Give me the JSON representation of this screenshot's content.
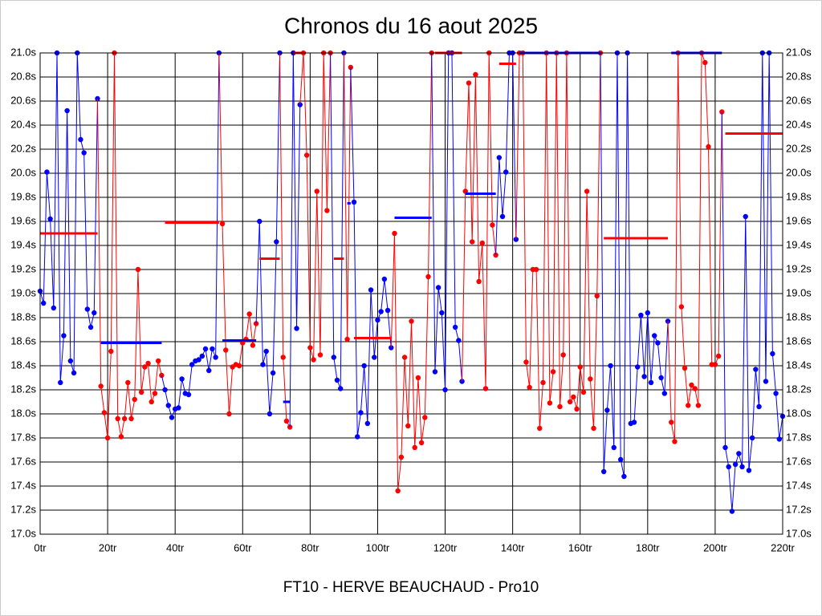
{
  "chart_data": {
    "type": "line",
    "title": "Chronos du 16 aout 2025",
    "x_label": "FT10 - HERVE BEAUCHAUD - Pro10",
    "xlim": [
      0,
      220
    ],
    "xticks": [
      {
        "value": 0,
        "label": "0tr"
      },
      {
        "value": 20,
        "label": "20tr"
      },
      {
        "value": 40,
        "label": "40tr"
      },
      {
        "value": 60,
        "label": "60tr"
      },
      {
        "value": 80,
        "label": "80tr"
      },
      {
        "value": 100,
        "label": "100tr"
      },
      {
        "value": 120,
        "label": "120tr"
      },
      {
        "value": 140,
        "label": "140tr"
      },
      {
        "value": 160,
        "label": "160tr"
      },
      {
        "value": 180,
        "label": "180tr"
      },
      {
        "value": 200,
        "label": "200tr"
      },
      {
        "value": 220,
        "label": "220tr"
      }
    ],
    "ylim": [
      17.0,
      21.0
    ],
    "yticks": [
      {
        "value": 17.0,
        "label": "17.0s"
      },
      {
        "value": 17.2,
        "label": "17.2s"
      },
      {
        "value": 17.4,
        "label": "17.4s"
      },
      {
        "value": 17.6,
        "label": "17.6s"
      },
      {
        "value": 17.8,
        "label": "17.8s"
      },
      {
        "value": 18.0,
        "label": "18.0s"
      },
      {
        "value": 18.2,
        "label": "18.2s"
      },
      {
        "value": 18.4,
        "label": "18.4s"
      },
      {
        "value": 18.6,
        "label": "18.6s"
      },
      {
        "value": 18.8,
        "label": "18.8s"
      },
      {
        "value": 19.0,
        "label": "19.0s"
      },
      {
        "value": 19.2,
        "label": "19.2s"
      },
      {
        "value": 19.4,
        "label": "19.4s"
      },
      {
        "value": 19.6,
        "label": "19.6s"
      },
      {
        "value": 19.8,
        "label": "19.8s"
      },
      {
        "value": 20.0,
        "label": "20.0s"
      },
      {
        "value": 20.2,
        "label": "20.2s"
      },
      {
        "value": 20.4,
        "label": "20.4s"
      },
      {
        "value": 20.6,
        "label": "20.6s"
      },
      {
        "value": 20.8,
        "label": "20.8s"
      },
      {
        "value": 21.0,
        "label": "21.0s"
      }
    ],
    "grid": true,
    "series": [
      {
        "color": "#0000ff",
        "start": 0,
        "values": [
          19.02,
          18.92,
          20.01,
          19.62,
          18.88,
          21.0,
          18.26,
          18.65,
          20.52,
          18.44,
          18.34,
          21.0,
          20.28,
          20.17,
          18.87,
          18.72,
          18.84,
          20.62
        ]
      },
      {
        "color": "#ff0000",
        "start": 18,
        "values": [
          18.23,
          18.01,
          17.8,
          18.52,
          21.0,
          17.96,
          17.81,
          17.96,
          18.26,
          17.96,
          18.12,
          19.2,
          18.18,
          18.39,
          18.42,
          18.1,
          18.17,
          18.44,
          18.32
        ]
      },
      {
        "color": "#0000ff",
        "start": 37,
        "values": [
          18.2,
          18.07,
          17.97,
          18.04,
          18.05,
          18.29,
          18.17,
          18.16,
          18.41,
          18.44,
          18.45,
          18.48,
          18.54,
          18.36,
          18.54,
          18.47,
          21.0
        ]
      },
      {
        "color": "#ff0000",
        "start": 54,
        "values": [
          19.58,
          18.53,
          18.0,
          18.39,
          18.41,
          18.4,
          18.59,
          18.62,
          18.83,
          18.57,
          18.75
        ]
      },
      {
        "color": "#0000ff",
        "start": 65,
        "values": [
          19.6,
          18.41,
          18.52,
          18.0,
          18.34,
          19.43,
          21.0
        ]
      },
      {
        "color": "#ff0000",
        "start": 72,
        "values": [
          18.47,
          17.94,
          17.89
        ]
      },
      {
        "color": "#0000ff",
        "start": 75,
        "values": [
          21.0,
          18.71,
          20.57
        ]
      },
      {
        "color": "#ff0000",
        "start": 78,
        "values": [
          21.0,
          20.15,
          18.55,
          18.45,
          19.85,
          18.49,
          21.0,
          19.69,
          21.0
        ]
      },
      {
        "color": "#0000ff",
        "start": 87,
        "values": [
          18.47,
          18.28,
          18.21,
          21.0
        ]
      },
      {
        "color": "#ff0000",
        "start": 91,
        "values": [
          18.62,
          20.88
        ]
      },
      {
        "color": "#0000ff",
        "start": 93,
        "values": [
          19.76,
          17.81,
          18.01,
          18.4,
          17.92,
          19.03,
          18.47,
          18.78,
          18.85,
          19.12,
          18.86,
          18.55
        ]
      },
      {
        "color": "#ff0000",
        "start": 105,
        "values": [
          19.5,
          17.36,
          17.64,
          18.47,
          17.9,
          18.77,
          17.72,
          18.3,
          17.76,
          17.97,
          19.14,
          21.0
        ]
      },
      {
        "color": "#0000ff",
        "start": 117,
        "values": [
          18.35,
          19.05,
          18.84,
          18.2,
          21.0,
          21.0,
          18.72,
          18.61,
          18.27
        ]
      },
      {
        "color": "#ff0000",
        "start": 126,
        "values": [
          19.85,
          20.75,
          19.43,
          20.82,
          19.1,
          19.42,
          18.21,
          21.0,
          19.57,
          19.32
        ]
      },
      {
        "color": "#0000ff",
        "start": 136,
        "values": [
          20.13,
          19.64,
          20.01,
          21.0,
          21.0,
          19.45
        ]
      },
      {
        "color": "#ff0000",
        "start": 142,
        "values": [
          21.0,
          21.0,
          18.43,
          18.22,
          19.2,
          19.2,
          17.88,
          18.26,
          21.0,
          18.09,
          18.35,
          21.0,
          18.06,
          18.49,
          21.0,
          18.1,
          18.14,
          18.04,
          18.39,
          18.18,
          19.85,
          18.29,
          17.88,
          18.98,
          21.0
        ]
      },
      {
        "color": "#0000ff",
        "start": 167,
        "values": [
          17.52,
          18.03,
          18.4,
          17.72,
          21.0,
          17.62,
          17.48,
          21.0,
          17.92,
          17.93,
          18.39,
          18.82,
          18.31,
          18.84,
          18.26,
          18.65,
          18.59,
          18.3,
          18.17,
          18.77
        ]
      },
      {
        "color": "#ff0000",
        "start": 187,
        "values": [
          17.93,
          17.77,
          21.0,
          18.89,
          18.38,
          18.07,
          18.24,
          18.21,
          18.07,
          21.0,
          20.92,
          20.22,
          18.41,
          18.41,
          18.48,
          20.51
        ]
      },
      {
        "color": "#0000ff",
        "start": 203,
        "values": [
          17.72,
          17.56,
          17.19,
          17.58,
          17.67,
          17.56,
          19.64,
          17.53,
          17.8,
          18.37,
          18.06,
          21.0,
          18.27,
          21.0,
          18.5,
          18.17,
          17.79,
          17.98
        ]
      }
    ],
    "means": [
      {
        "color": "#ff0000",
        "x": [
          0,
          17
        ],
        "value": 19.5
      },
      {
        "color": "#0000ff",
        "x": [
          18,
          36
        ],
        "value": 18.59
      },
      {
        "color": "#ff0000",
        "x": [
          37,
          53
        ],
        "value": 19.59
      },
      {
        "color": "#0000ff",
        "x": [
          54,
          64
        ],
        "value": 18.61
      },
      {
        "color": "#ff0000",
        "x": [
          65,
          71
        ],
        "value": 19.29
      },
      {
        "color": "#0000ff",
        "x": [
          72,
          74
        ],
        "value": 18.1
      },
      {
        "color": "#ff0000",
        "x": [
          75,
          78
        ],
        "value": 21.0
      },
      {
        "color": "#ff0000",
        "x": [
          87,
          90
        ],
        "value": 19.29
      },
      {
        "color": "#0000ff",
        "x": [
          91,
          92
        ],
        "value": 19.75
      },
      {
        "color": "#ff0000",
        "x": [
          93,
          104
        ],
        "value": 18.63
      },
      {
        "color": "#0000ff",
        "x": [
          105,
          116
        ],
        "value": 19.63
      },
      {
        "color": "#ff0000",
        "x": [
          117,
          125
        ],
        "value": 21.0
      },
      {
        "color": "#0000ff",
        "x": [
          126,
          135
        ],
        "value": 19.83
      },
      {
        "color": "#ff0000",
        "x": [
          136,
          141
        ],
        "value": 20.91
      },
      {
        "color": "#0000ff",
        "x": [
          142,
          166
        ],
        "value": 21.0
      },
      {
        "color": "#ff0000",
        "x": [
          167,
          186
        ],
        "value": 19.46
      },
      {
        "color": "#0000ff",
        "x": [
          187,
          202
        ],
        "value": 21.0
      },
      {
        "color": "#ff0000",
        "x": [
          203,
          220
        ],
        "value": 20.33
      }
    ]
  }
}
